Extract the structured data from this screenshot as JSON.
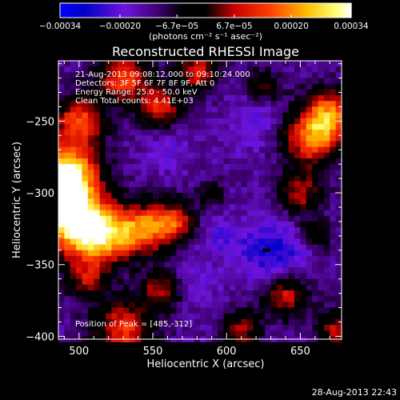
{
  "chart_data": {
    "type": "heatmap",
    "title": "Reconstructed RHESSI Image",
    "xlabel": "Heliocentric X (arcsec)",
    "ylabel": "Heliocentric Y (arcsec)",
    "xlim": [
      486,
      678
    ],
    "ylim": [
      -402,
      -208
    ],
    "x_ticks": [
      500,
      550,
      600,
      650
    ],
    "y_ticks": [
      -250,
      -300,
      -350,
      -400
    ],
    "colorbar": {
      "units_label": "(photons cm⁻² s⁻¹ asec⁻²)",
      "range": [
        -0.00034,
        0.00034
      ],
      "tick_values": [
        -0.00034,
        -0.0002,
        -6.7e-05,
        6.7e-05,
        0.0002,
        0.00034
      ],
      "tick_labels": [
        "−0.00034",
        "−0.00020",
        "−6.7e−05",
        "6.7e−05",
        "0.00020",
        "0.00034"
      ]
    },
    "annotations": [
      "21-Aug-2013 09:08:12.000 to 09:10:24.000",
      "Detectors: 3F 5F 6F 7F 8F 9F, Att 0",
      "Energy Range: 25.0 - 50.0 keV",
      "Clean     Total counts: 4.41E+03"
    ],
    "peak_label": "Position of Peak = [485,-312]",
    "peak": [
      485,
      -312
    ],
    "min_feature": [
      627,
      -340
    ],
    "grid": false
  },
  "footer": {
    "timestamp": "28-Aug-2013 22:43"
  },
  "colors": {
    "background": "#000000",
    "text": "#ffffff",
    "plot_border": "#ffffff"
  }
}
